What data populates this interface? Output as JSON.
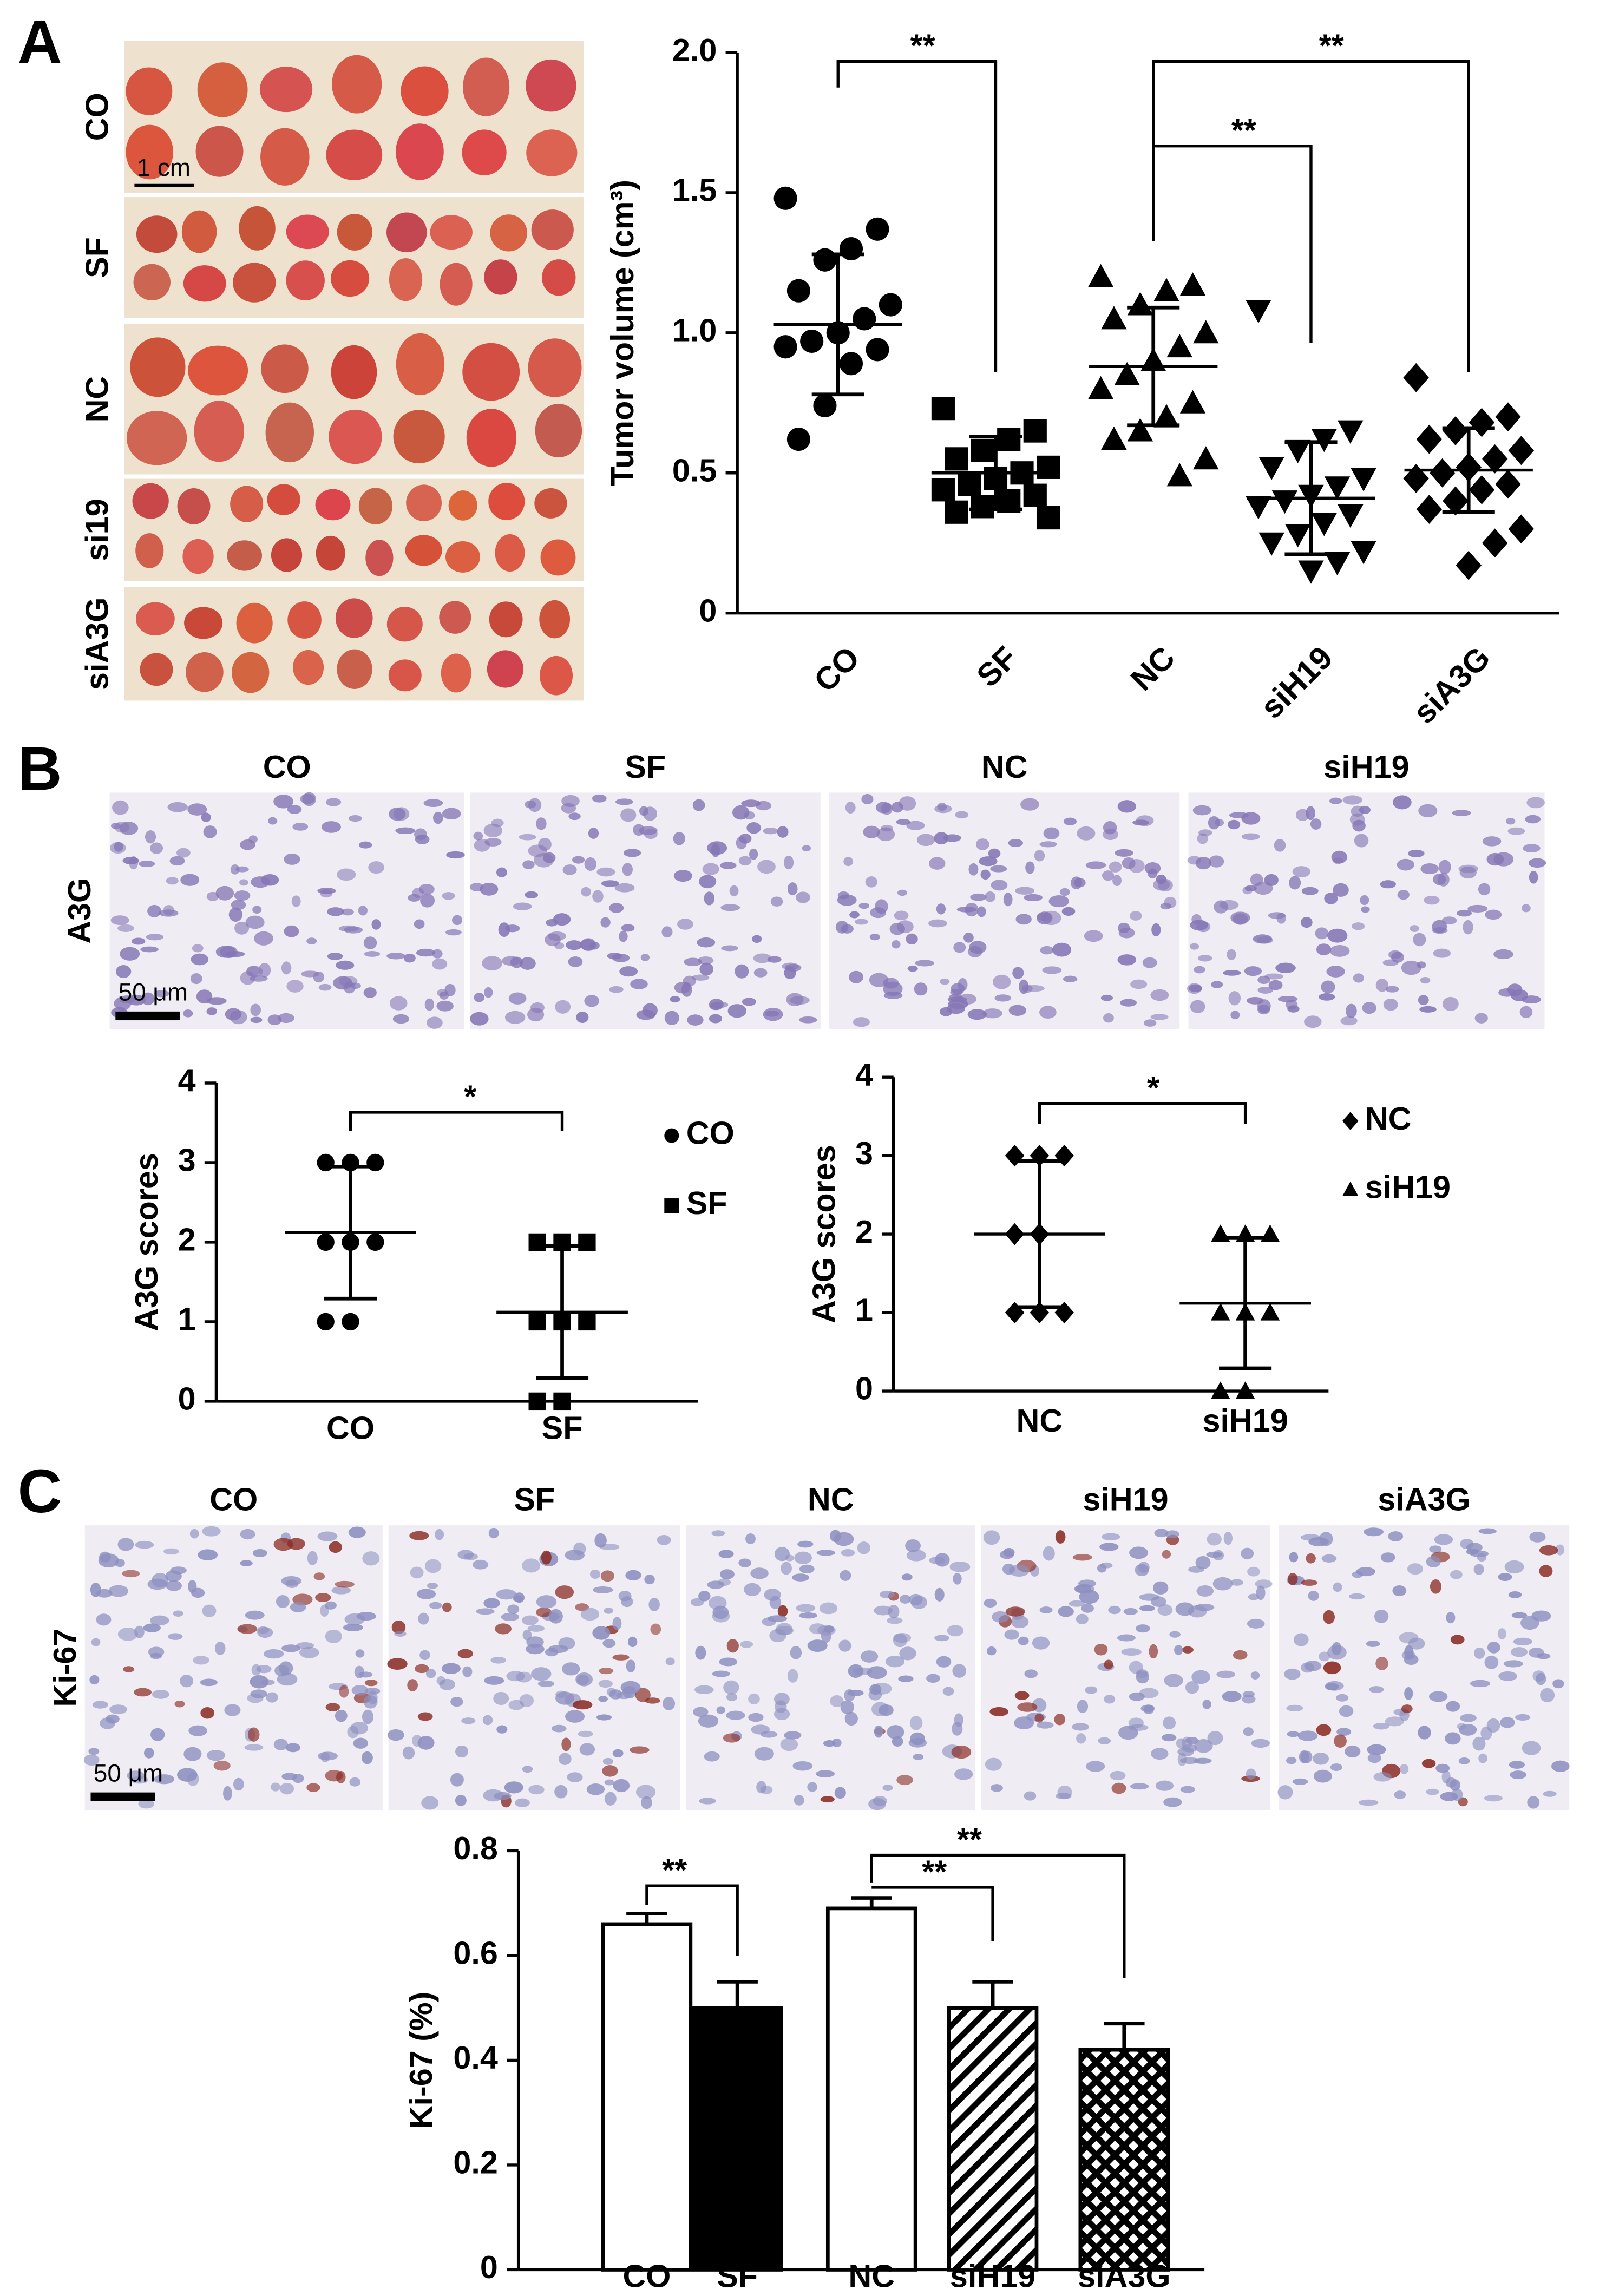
{
  "panel_labels": [
    "A",
    "B",
    "C"
  ],
  "tumor_photos": {
    "row_labels": [
      "CO",
      "SF",
      "NC",
      "si19",
      "siA3G"
    ],
    "scale": "1 cm"
  },
  "a3g_ihc": {
    "stain": "A3G",
    "columns": [
      "CO",
      "SF",
      "NC",
      "siH19"
    ],
    "scale": "50 μm"
  },
  "ki67_ihc": {
    "stain": "Ki-67",
    "columns": [
      "CO",
      "SF",
      "NC",
      "siH19",
      "siA3G"
    ],
    "scale": "50 μm"
  },
  "chart_data": [
    {
      "type": "dotplot",
      "ylabel": "Tumor volume (cm³)",
      "categories": [
        "CO",
        "SF",
        "NC",
        "siH19",
        "siA3G"
      ],
      "markers": [
        "circle",
        "square",
        "triangle",
        "triangle-down",
        "diamond"
      ],
      "values": [
        [
          1.48,
          1.37,
          1.3,
          1.26,
          1.15,
          1.1,
          1.05,
          1.0,
          0.97,
          0.95,
          0.94,
          0.89,
          0.74,
          0.62
        ],
        [
          0.73,
          0.65,
          0.62,
          0.58,
          0.55,
          0.52,
          0.5,
          0.48,
          0.46,
          0.44,
          0.42,
          0.4,
          0.38,
          0.36,
          0.34
        ],
        [
          1.2,
          1.17,
          1.15,
          1.1,
          1.05,
          1.0,
          0.95,
          0.9,
          0.85,
          0.8,
          0.75,
          0.7,
          0.65,
          0.62,
          0.55,
          0.49
        ],
        [
          1.08,
          0.65,
          0.62,
          0.58,
          0.52,
          0.48,
          0.45,
          0.42,
          0.4,
          0.38,
          0.35,
          0.32,
          0.28,
          0.25,
          0.22,
          0.18,
          0.15
        ],
        [
          0.84,
          0.7,
          0.68,
          0.65,
          0.62,
          0.58,
          0.55,
          0.52,
          0.5,
          0.48,
          0.46,
          0.44,
          0.4,
          0.37,
          0.3,
          0.25,
          0.17
        ]
      ],
      "means": [
        1.03,
        0.5,
        0.88,
        0.41,
        0.51
      ],
      "sds": [
        0.25,
        0.13,
        0.21,
        0.2,
        0.15
      ],
      "ylim": [
        0,
        2
      ],
      "yticks": [
        0,
        0.5,
        {
          "value": 1,
          "label": "1.0"
        },
        1.5,
        {
          "value": 2,
          "label": "2.0"
        }
      ],
      "annotations": [
        "**",
        "**",
        "**"
      ],
      "color": "#000000",
      "legend": false
    },
    {
      "type": "dotplot",
      "ylabel": "A3G scores",
      "categories": [
        "CO",
        "SF"
      ],
      "markers": [
        "circle",
        "square"
      ],
      "values": [
        [
          3,
          3,
          3,
          2,
          2,
          2,
          1,
          1
        ],
        [
          2,
          2,
          2,
          1,
          1,
          1,
          0,
          0
        ]
      ],
      "means": [
        2.12,
        1.12
      ],
      "sds": [
        0.83,
        0.83
      ],
      "ylim": [
        0,
        4
      ],
      "yticks": [
        0,
        1,
        2,
        3,
        4
      ],
      "annotations": [
        "*"
      ],
      "color": "#000000",
      "legend": true
    },
    {
      "type": "dotplot",
      "ylabel": "A3G scores",
      "categories": [
        "NC",
        "siH19"
      ],
      "markers": [
        "diamond",
        "triangle"
      ],
      "values": [
        [
          3,
          3,
          3,
          2,
          2,
          1,
          1,
          1
        ],
        [
          2,
          2,
          2,
          1,
          1,
          1,
          0,
          0
        ]
      ],
      "means": [
        2.0,
        1.12
      ],
      "sds": [
        0.93,
        0.83
      ],
      "ylim": [
        0,
        4
      ],
      "yticks": [
        0,
        1,
        2,
        3,
        4
      ],
      "annotations": [
        "*"
      ],
      "color": "#000000",
      "legend": true
    },
    {
      "type": "bar",
      "ylabel": "Ki-67 (%)",
      "categories": [
        "CO",
        "SF",
        "NC",
        "siH19",
        "siA3G"
      ],
      "values": [
        0.66,
        0.5,
        0.69,
        0.5,
        0.42
      ],
      "errors": [
        0.02,
        0.05,
        0.02,
        0.05,
        0.05
      ],
      "fills": [
        "white",
        "black",
        "white",
        "hatch",
        "crosshatch"
      ],
      "ylim": [
        0,
        0.8
      ],
      "yticks": [
        0,
        0.2,
        0.4,
        0.6,
        0.8
      ],
      "annotations": [
        "**",
        "**",
        "**"
      ],
      "color": "#000000"
    }
  ]
}
